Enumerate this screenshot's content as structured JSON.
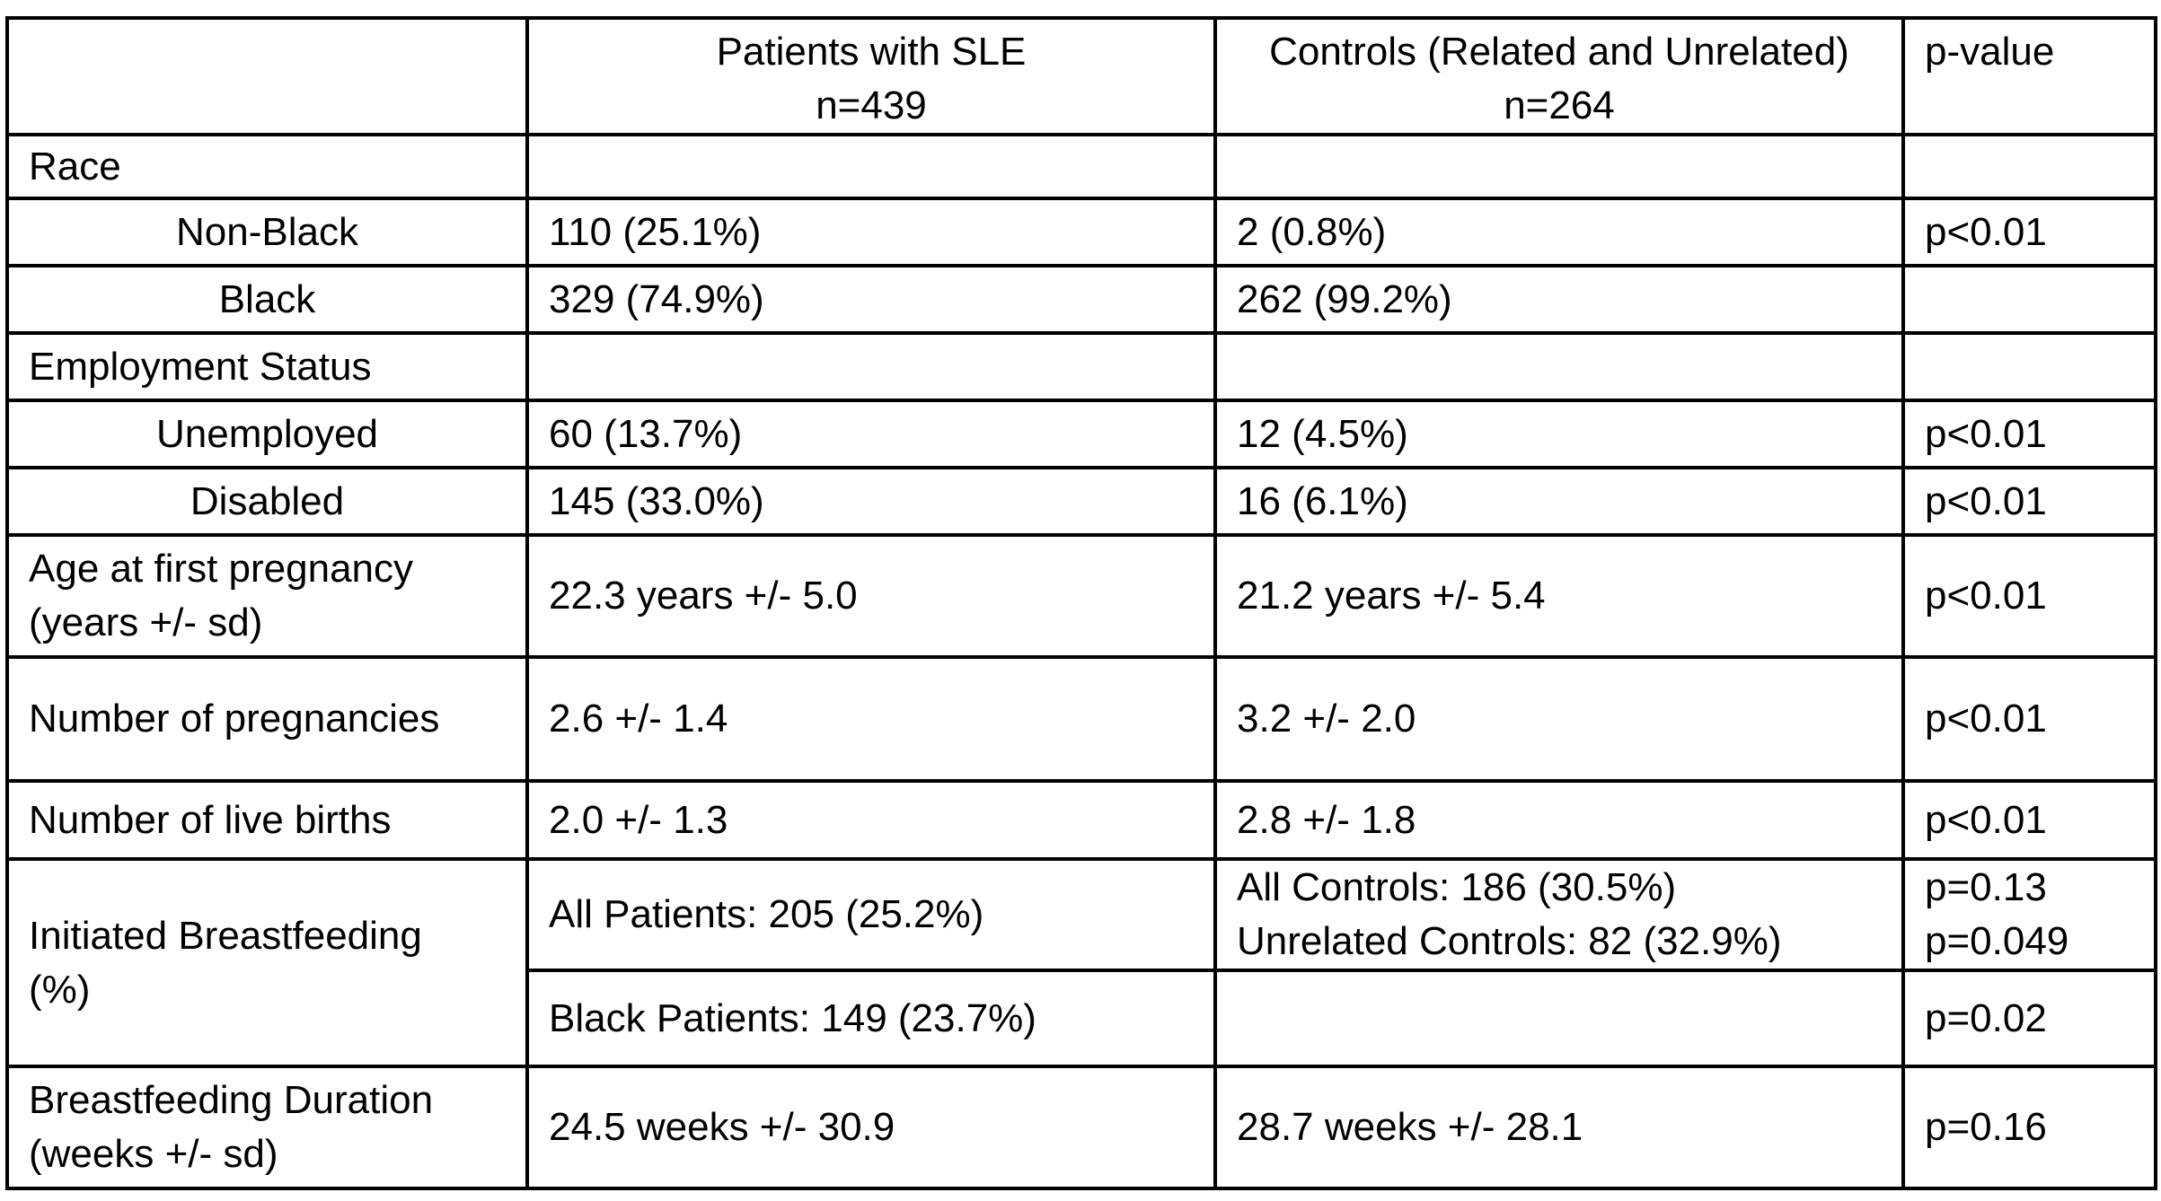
{
  "header": {
    "col_sle_title": "Patients with SLE",
    "col_sle_n": "n=439",
    "col_controls_title": "Controls (Related and Unrelated)",
    "col_controls_n": "n=264",
    "col_pvalue": "p-value"
  },
  "rows": {
    "race": {
      "label": "Race"
    },
    "non_black": {
      "label": "Non-Black",
      "sle": "110 (25.1%)",
      "controls": "2 (0.8%)",
      "p": "p<0.01"
    },
    "black": {
      "label": "Black",
      "sle": "329 (74.9%)",
      "controls": "262 (99.2%)",
      "p": ""
    },
    "employment": {
      "label": "Employment Status"
    },
    "unemployed": {
      "label": "Unemployed",
      "sle": "60 (13.7%)",
      "controls": "12 (4.5%)",
      "p": "p<0.01"
    },
    "disabled": {
      "label": "Disabled",
      "sle": "145 (33.0%)",
      "controls": "16 (6.1%)",
      "p": "p<0.01"
    },
    "age_first_pregnancy": {
      "label_line1": "Age at first pregnancy",
      "label_line2": "(years +/- sd)",
      "sle": "22.3 years +/- 5.0",
      "controls": "21.2 years +/- 5.4",
      "p": "p<0.01"
    },
    "num_pregnancies": {
      "label": "Number of pregnancies",
      "sle": "2.6 +/- 1.4",
      "controls": "3.2 +/- 2.0",
      "p": "p<0.01"
    },
    "num_live_births": {
      "label": "Number of live births",
      "sle": "2.0 +/- 1.3",
      "controls": "2.8 +/- 1.8",
      "p": "p<0.01"
    },
    "breastfeeding": {
      "label_line1": "Initiated Breastfeeding",
      "label_line2": "(%)",
      "sle_all": "All Patients: 205 (25.2%)",
      "controls_all": "All Controls: 186 (30.5%)",
      "controls_unrelated": "Unrelated Controls: 82 (32.9%)",
      "p_all": "p=0.13",
      "p_unrelated": "p=0.049",
      "sle_black": "Black Patients: 149 (23.7%)",
      "controls_black": "",
      "p_black": "p=0.02"
    },
    "bf_duration": {
      "label_line1": "Breastfeeding Duration",
      "label_line2": "(weeks +/- sd)",
      "sle": "24.5 weeks +/- 30.9",
      "controls": "28.7 weeks +/- 28.1",
      "p": "p=0.16"
    }
  }
}
